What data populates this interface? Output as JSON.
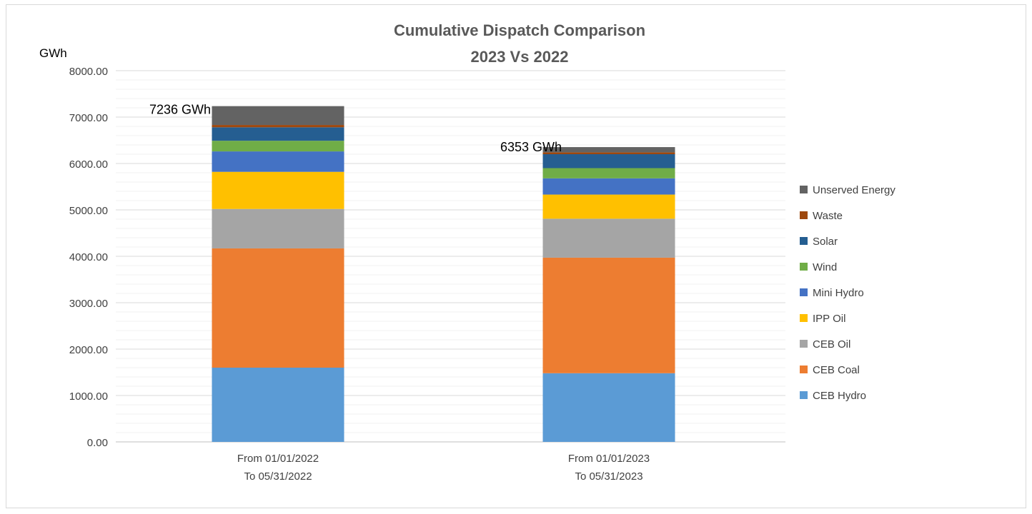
{
  "chart_data": {
    "type": "bar",
    "stacked": true,
    "title": "Cumulative Dispatch Comparison",
    "subtitle": "2023 Vs 2022",
    "ylabel": "GWh",
    "ylim": [
      0,
      8000
    ],
    "yticks": [
      "0.00",
      "1000.00",
      "2000.00",
      "3000.00",
      "4000.00",
      "5000.00",
      "6000.00",
      "7000.00",
      "8000.00"
    ],
    "grid": true,
    "legend_position": "right",
    "categories": [
      [
        "From  01/01/2022",
        "To  05/31/2022"
      ],
      [
        "From  01/01/2023",
        "To  05/31/2023"
      ]
    ],
    "series": [
      {
        "name": "CEB Hydro",
        "color": "#5b9bd5",
        "values": [
          1600,
          1480
        ]
      },
      {
        "name": "CEB Coal",
        "color": "#ed7d31",
        "values": [
          2570,
          2490
        ]
      },
      {
        "name": "CEB Oil",
        "color": "#a5a5a5",
        "values": [
          850,
          840
        ]
      },
      {
        "name": "IPP Oil",
        "color": "#ffc000",
        "values": [
          800,
          520
        ]
      },
      {
        "name": "Mini Hydro",
        "color": "#4472c4",
        "values": [
          440,
          350
        ]
      },
      {
        "name": "Wind",
        "color": "#70ad47",
        "values": [
          230,
          220
        ]
      },
      {
        "name": "Solar",
        "color": "#255e91",
        "values": [
          290,
          300
        ]
      },
      {
        "name": "Waste",
        "color": "#9e480e",
        "values": [
          50,
          40
        ]
      },
      {
        "name": "Unserved Energy",
        "color": "#636363",
        "values": [
          406,
          113
        ]
      }
    ],
    "totals": [
      7236,
      6353
    ],
    "total_labels": [
      "7236 GWh",
      "6353 GWh"
    ]
  }
}
